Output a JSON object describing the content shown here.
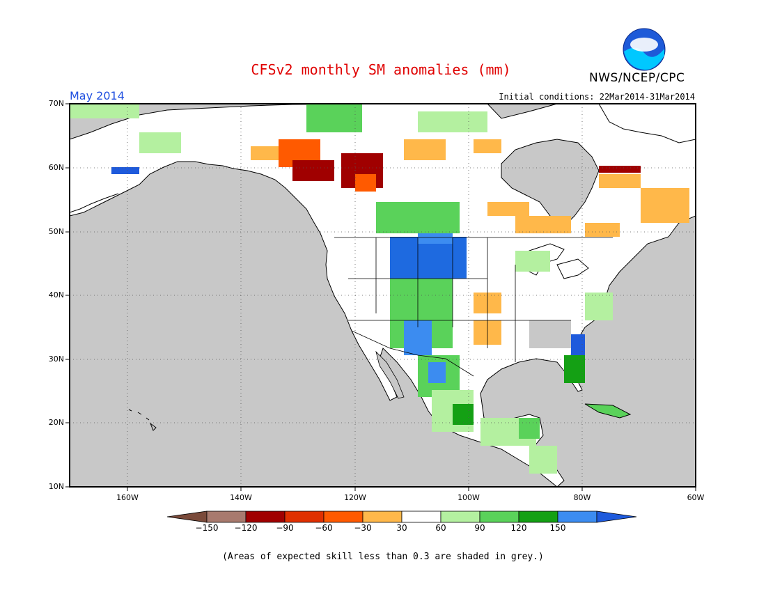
{
  "title": "CFSv2 monthly SM anomalies (mm)",
  "agency": "NWS/NCEP/CPC",
  "logo_text": "NOAA",
  "month_label": "May 2014",
  "initial_conditions": "Initial conditions: 22Mar2014-31Mar2014",
  "note": "(Areas of expected skill less than 0.3 are shaded in grey.)",
  "map": {
    "lon_range": [
      -172,
      -60
    ],
    "lat_range": [
      10,
      70
    ],
    "lat_ticks": [
      "10N",
      "20N",
      "30N",
      "40N",
      "50N",
      "60N",
      "70N"
    ],
    "lon_ticks": [
      "160W",
      "140W",
      "120W",
      "100W",
      "80W",
      "60W"
    ],
    "ocean_color": "#c8c8c8"
  },
  "colorbar": {
    "labels": [
      "-150",
      "-120",
      "-90",
      "-60",
      "-30",
      "30",
      "60",
      "90",
      "120",
      "150"
    ],
    "colors": [
      "#7a4a3a",
      "#a87a6e",
      "#a00000",
      "#e03000",
      "#ff5a00",
      "#ffb84a",
      "#ffffff",
      "#b4f0a0",
      "#5ad25a",
      "#14a014",
      "#3c8cf0",
      "#1e5adc"
    ]
  }
}
